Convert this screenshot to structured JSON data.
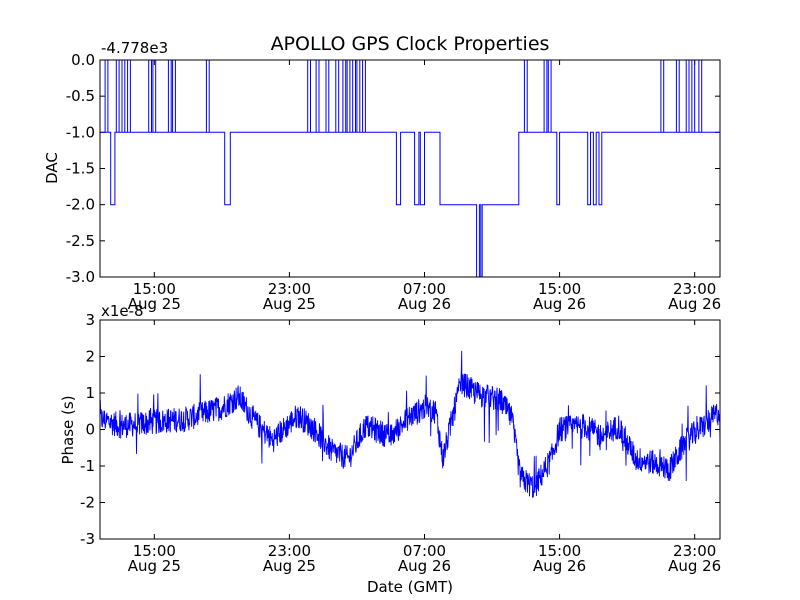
{
  "title": "APOLLO GPS Clock Properties",
  "colors": {
    "line": "#0000ff",
    "frame": "#000000",
    "background": "#ffffff"
  },
  "chart_data": [
    {
      "type": "line",
      "ylabel": "DAC",
      "xlabel": "",
      "offset_text": "-4.778e3",
      "y_offset": -4778,
      "ylim": [
        -3.0,
        0.0
      ],
      "yticks": [
        0.0,
        -0.5,
        -1.0,
        -1.5,
        -2.0,
        -2.5,
        -3.0
      ],
      "ytick_labels": [
        "0.0",
        "-0.5",
        "-1.0",
        "-1.5",
        "-2.0",
        "-2.5",
        "-3.0"
      ],
      "xlim": [
        "Aug 25 11:47",
        "Aug 27 00:30"
      ],
      "xtick_labels": [
        {
          "time": "15:00",
          "date": "Aug 25"
        },
        {
          "time": "23:00",
          "date": "Aug 25"
        },
        {
          "time": "07:00",
          "date": "Aug 26"
        },
        {
          "time": "15:00",
          "date": "Aug 26"
        },
        {
          "time": "23:00",
          "date": "Aug 26"
        }
      ],
      "grid": false,
      "series": [
        {
          "points": [
            [
              "Aug 25 11:47",
              -1.0
            ],
            [
              "Aug 25 12:25",
              -1.0
            ],
            [
              "Aug 25 12:25",
              -2.0
            ],
            [
              "Aug 25 12:40",
              -2.0
            ],
            [
              "Aug 25 12:40",
              -1.0
            ],
            [
              "Aug 25 19:10",
              -1.0
            ],
            [
              "Aug 25 19:10",
              -2.0
            ],
            [
              "Aug 25 19:30",
              -2.0
            ],
            [
              "Aug 25 19:30",
              -1.0
            ],
            [
              "Aug 26 05:20",
              -1.0
            ],
            [
              "Aug 26 05:20",
              -2.0
            ],
            [
              "Aug 26 05:35",
              -2.0
            ],
            [
              "Aug 26 05:35",
              -1.0
            ],
            [
              "Aug 26 06:25",
              -1.0
            ],
            [
              "Aug 26 06:25",
              -2.0
            ],
            [
              "Aug 26 06:40",
              -2.0
            ],
            [
              "Aug 26 06:40",
              -1.0
            ],
            [
              "Aug 26 06:45",
              -1.0
            ],
            [
              "Aug 26 06:45",
              -2.0
            ],
            [
              "Aug 26 07:00",
              -2.0
            ],
            [
              "Aug 26 07:00",
              -1.0
            ],
            [
              "Aug 26 07:55",
              -1.0
            ],
            [
              "Aug 26 07:55",
              -2.0
            ],
            [
              "Aug 26 10:05",
              -2.0
            ],
            [
              "Aug 26 10:05",
              -3.0
            ],
            [
              "Aug 26 10:15",
              -3.0
            ],
            [
              "Aug 26 10:15",
              -2.0
            ],
            [
              "Aug 26 10:20",
              -2.0
            ],
            [
              "Aug 26 10:20",
              -3.0
            ],
            [
              "Aug 26 10:25",
              -3.0
            ],
            [
              "Aug 26 10:25",
              -2.0
            ],
            [
              "Aug 26 12:35",
              -2.0
            ],
            [
              "Aug 26 12:35",
              -1.0
            ],
            [
              "Aug 26 14:50",
              -1.0
            ],
            [
              "Aug 26 14:50",
              -2.0
            ],
            [
              "Aug 26 15:00",
              -2.0
            ],
            [
              "Aug 26 15:00",
              -1.0
            ],
            [
              "Aug 26 16:40",
              -1.0
            ],
            [
              "Aug 26 16:40",
              -2.0
            ],
            [
              "Aug 26 16:50",
              -2.0
            ],
            [
              "Aug 26 16:50",
              -1.0
            ],
            [
              "Aug 26 17:00",
              -1.0
            ],
            [
              "Aug 26 17:00",
              -2.0
            ],
            [
              "Aug 26 17:10",
              -2.0
            ],
            [
              "Aug 26 17:10",
              -1.0
            ],
            [
              "Aug 26 17:20",
              -1.0
            ],
            [
              "Aug 26 17:20",
              -2.0
            ],
            [
              "Aug 26 17:30",
              -2.0
            ],
            [
              "Aug 26 17:30",
              -1.0
            ],
            [
              "Aug 27 00:30",
              -1.0
            ]
          ]
        }
      ],
      "spikes_to_zero": [
        [
          "Aug 25 12:05",
          "Aug 25 12:15"
        ],
        [
          "Aug 25 12:45",
          "Aug 25 12:55"
        ],
        [
          "Aug 25 13:05",
          "Aug 25 13:15"
        ],
        [
          "Aug 25 13:25",
          "Aug 25 13:35"
        ],
        [
          "Aug 25 14:40",
          "Aug 25 14:50"
        ],
        [
          "Aug 25 14:55",
          "Aug 25 15:05"
        ],
        [
          "Aug 25 15:50",
          "Aug 25 16:00"
        ],
        [
          "Aug 25 16:05",
          "Aug 25 16:15"
        ],
        [
          "Aug 25 18:05",
          "Aug 25 18:15"
        ],
        [
          "Aug 26 00:05",
          "Aug 26 00:15"
        ],
        [
          "Aug 26 00:35",
          "Aug 26 00:45"
        ],
        [
          "Aug 26 01:10",
          "Aug 26 01:20"
        ],
        [
          "Aug 26 01:45",
          "Aug 26 01:55"
        ],
        [
          "Aug 26 02:10",
          "Aug 26 02:20"
        ],
        [
          "Aug 26 02:25",
          "Aug 26 02:35"
        ],
        [
          "Aug 26 02:45",
          "Aug 26 02:55"
        ],
        [
          "Aug 26 03:00",
          "Aug 26 03:10"
        ],
        [
          "Aug 26 03:20",
          "Aug 26 03:30"
        ],
        [
          "Aug 26 12:55",
          "Aug 26 13:05"
        ],
        [
          "Aug 26 14:05",
          "Aug 26 14:15"
        ],
        [
          "Aug 26 14:20",
          "Aug 26 14:30"
        ],
        [
          "Aug 26 21:00",
          "Aug 26 21:10"
        ],
        [
          "Aug 26 21:55",
          "Aug 26 22:05"
        ],
        [
          "Aug 26 22:30",
          "Aug 26 22:40"
        ],
        [
          "Aug 26 22:50",
          "Aug 26 23:00"
        ],
        [
          "Aug 26 23:15",
          "Aug 26 23:25"
        ]
      ]
    },
    {
      "type": "line",
      "ylabel": "Phase (s)",
      "xlabel": "Date (GMT)",
      "offset_text": "x1e-8",
      "scale": 1e-08,
      "ylim": [
        -3,
        3
      ],
      "yticks": [
        3,
        2,
        1,
        0,
        -1,
        -2,
        -3
      ],
      "ytick_labels": [
        "3",
        "2",
        "1",
        "0",
        "-1",
        "-2",
        "-3"
      ],
      "xlim": [
        "Aug 25 11:47",
        "Aug 27 00:30"
      ],
      "xtick_labels": [
        {
          "time": "15:00",
          "date": "Aug 25"
        },
        {
          "time": "23:00",
          "date": "Aug 25"
        },
        {
          "time": "07:00",
          "date": "Aug 26"
        },
        {
          "time": "15:00",
          "date": "Aug 26"
        },
        {
          "time": "23:00",
          "date": "Aug 26"
        }
      ],
      "grid": false,
      "series": [
        {
          "trend": [
            [
              "Aug 25 11:47",
              0.3
            ],
            [
              "Aug 25 13:00",
              0.1
            ],
            [
              "Aug 25 15:00",
              0.2
            ],
            [
              "Aug 25 17:00",
              0.3
            ],
            [
              "Aug 25 19:00",
              0.6
            ],
            [
              "Aug 25 20:00",
              0.9
            ],
            [
              "Aug 25 21:00",
              0.2
            ],
            [
              "Aug 25 22:00",
              -0.3
            ],
            [
              "Aug 25 23:30",
              0.4
            ],
            [
              "Aug 26 00:30",
              0.0
            ],
            [
              "Aug 26 01:30",
              -0.6
            ],
            [
              "Aug 26 02:30",
              -0.8
            ],
            [
              "Aug 26 03:30",
              0.1
            ],
            [
              "Aug 26 05:00",
              -0.2
            ],
            [
              "Aug 26 06:00",
              0.3
            ],
            [
              "Aug 26 07:00",
              0.6
            ],
            [
              "Aug 26 07:40",
              0.5
            ],
            [
              "Aug 26 08:05",
              -0.8
            ],
            [
              "Aug 26 08:45",
              0.5
            ],
            [
              "Aug 26 09:10",
              1.3
            ],
            [
              "Aug 26 10:00",
              1.0
            ],
            [
              "Aug 26 11:30",
              0.8
            ],
            [
              "Aug 26 12:10",
              0.3
            ],
            [
              "Aug 26 12:40",
              -1.3
            ],
            [
              "Aug 26 13:30",
              -1.6
            ],
            [
              "Aug 26 14:00",
              -1.2
            ],
            [
              "Aug 26 14:30",
              -0.8
            ],
            [
              "Aug 26 15:00",
              0.0
            ],
            [
              "Aug 26 16:30",
              0.1
            ],
            [
              "Aug 26 17:30",
              -0.2
            ],
            [
              "Aug 26 18:30",
              0.1
            ],
            [
              "Aug 26 19:30",
              -0.8
            ],
            [
              "Aug 26 20:30",
              -0.9
            ],
            [
              "Aug 26 21:30",
              -1.1
            ],
            [
              "Aug 26 22:30",
              -0.3
            ],
            [
              "Aug 26 23:30",
              0.1
            ],
            [
              "Aug 27 00:30",
              0.5
            ]
          ],
          "noise_amplitude": 0.35
        }
      ]
    }
  ]
}
